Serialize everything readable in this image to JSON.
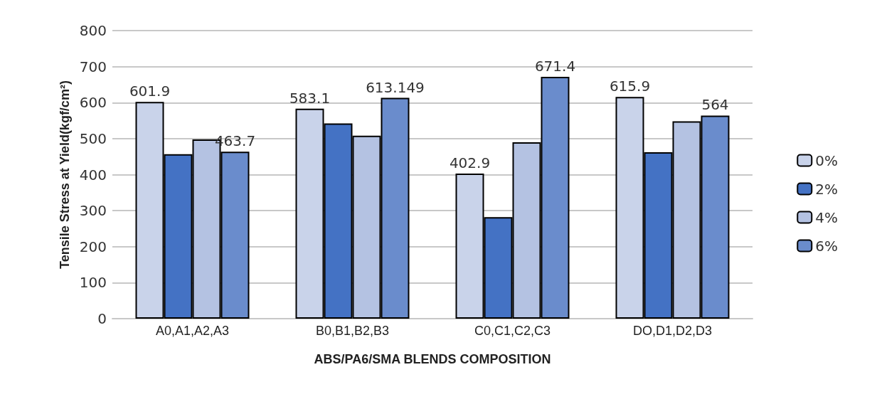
{
  "chart_data": {
    "type": "bar",
    "xlabel": "ABS/PA6/SMA BLENDS COMPOSITION",
    "ylabel": "Tensile Stress at Yield(kgf/cm²)",
    "categories": [
      "A0,A1,A2,A3",
      "B0,B1,B2,B3",
      "C0,C1,C2,C3",
      "DO,D1,D2,D3"
    ],
    "series": [
      {
        "name": "0%",
        "color": "#c9d3ea",
        "values": [
          601.9,
          583.1,
          402.9,
          615.9
        ],
        "value_labels": [
          "601.9",
          "583.1",
          "402.9",
          "615.9"
        ]
      },
      {
        "name": "2%",
        "color": "#4472c4",
        "values": [
          457,
          542,
          282,
          462
        ]
      },
      {
        "name": "4%",
        "color": "#b4c2e2",
        "values": [
          498,
          508,
          490,
          548
        ]
      },
      {
        "name": "6%",
        "color": "#6a8ccc",
        "values": [
          463.7,
          613.149,
          671.4,
          564
        ],
        "value_labels": [
          "463.7",
          "613.149",
          "671.4",
          "564"
        ]
      }
    ],
    "ylim": [
      0,
      800
    ],
    "yticks": [
      0,
      100,
      200,
      300,
      400,
      500,
      600,
      700,
      800
    ],
    "grid": "y",
    "legend": "right"
  }
}
